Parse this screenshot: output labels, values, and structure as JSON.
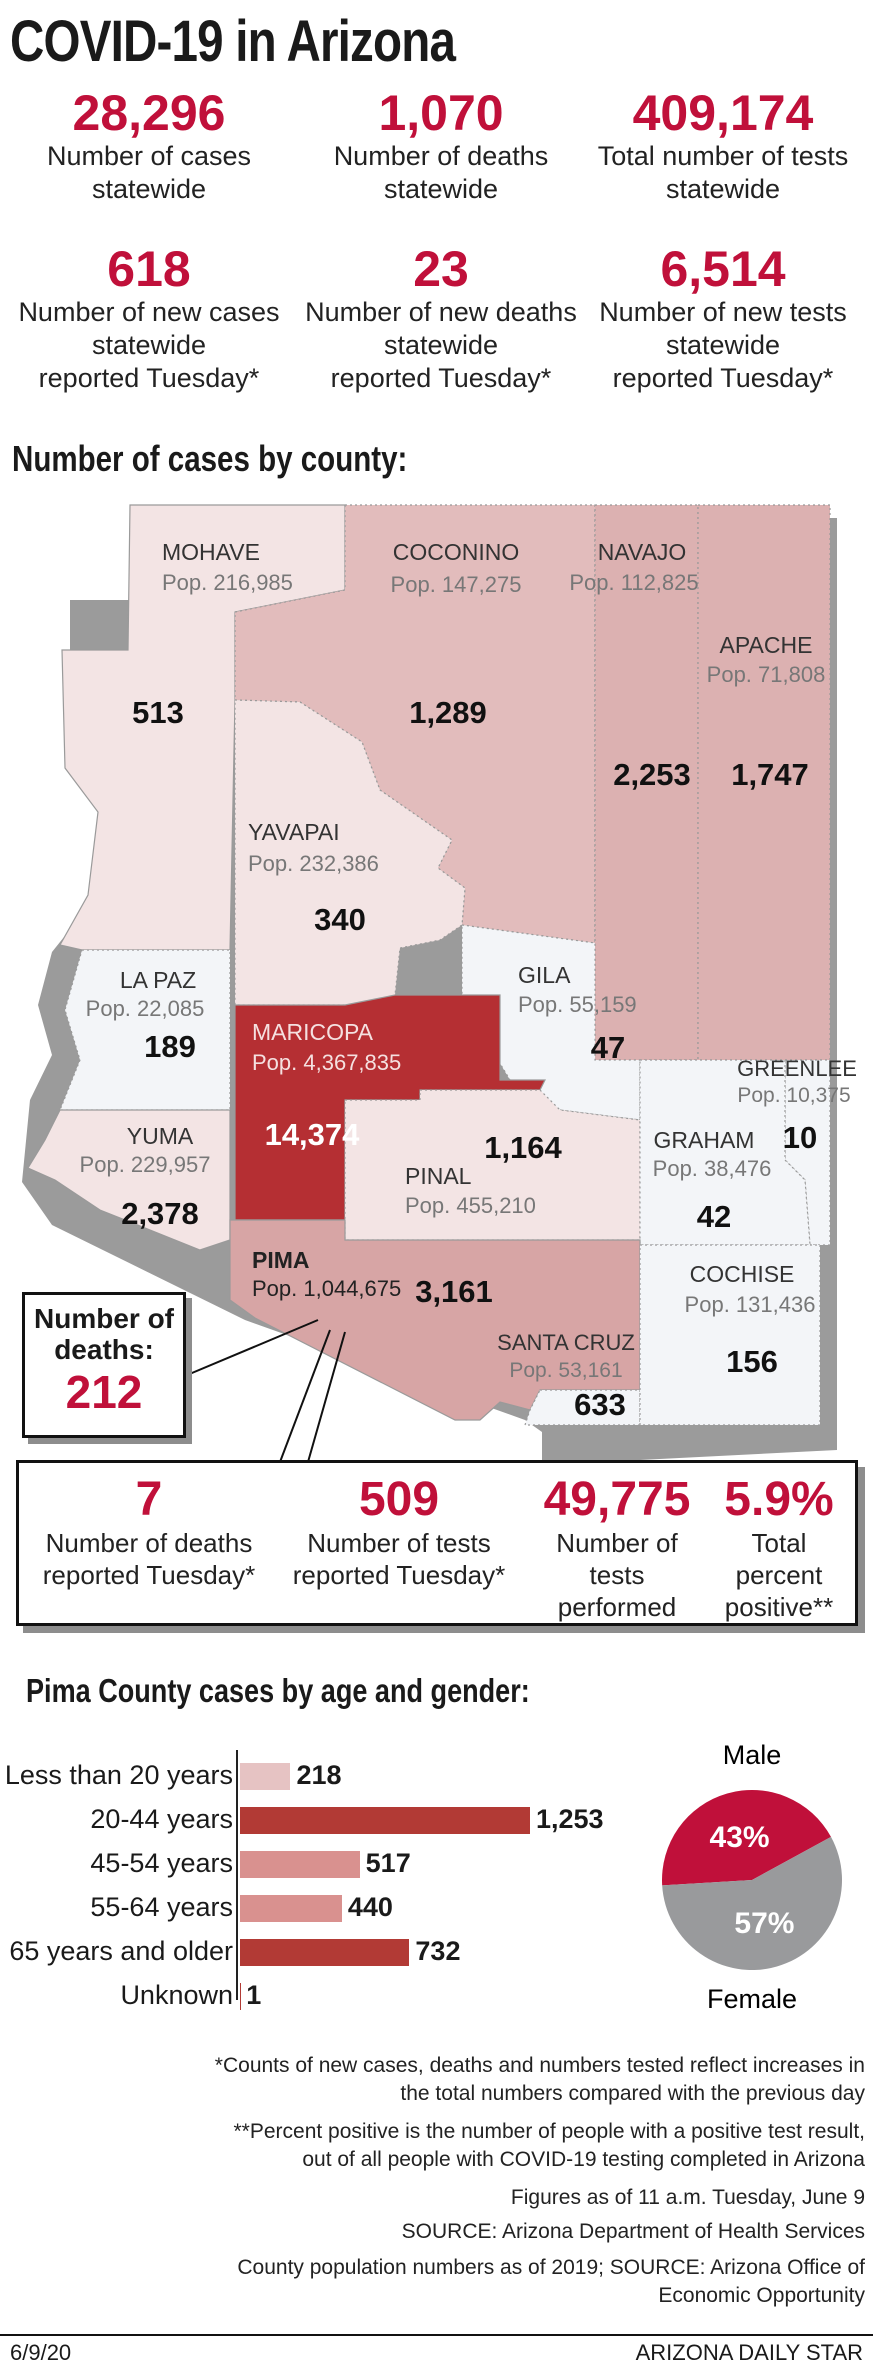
{
  "title": "COVID-19 in Arizona",
  "stats_top": [
    {
      "value": "28,296",
      "label": [
        "Number of cases",
        "statewide"
      ]
    },
    {
      "value": "1,070",
      "label": [
        "Number of deaths",
        "statewide"
      ]
    },
    {
      "value": "409,174",
      "label": [
        "Total number of tests",
        "statewide"
      ]
    },
    {
      "value": "618",
      "label": [
        "Number of new cases",
        "statewide",
        "reported Tuesday*"
      ]
    },
    {
      "value": "23",
      "label": [
        "Number of new deaths",
        "statewide",
        "reported Tuesday*"
      ]
    },
    {
      "value": "6,514",
      "label": [
        "Number of new tests",
        "statewide",
        "reported Tuesday*"
      ]
    }
  ],
  "map_heading": "Number of cases by county:",
  "counties": [
    {
      "name": "MOHAVE",
      "pop": "Pop. 216,985",
      "cases": "513"
    },
    {
      "name": "COCONINO",
      "pop": "Pop. 147,275",
      "cases": "1,289"
    },
    {
      "name": "NAVAJO",
      "pop": "Pop. 112,825",
      "cases": "2,253"
    },
    {
      "name": "APACHE",
      "pop": "Pop. 71,808",
      "cases": "1,747"
    },
    {
      "name": "YAVAPAI",
      "pop": "Pop. 232,386",
      "cases": "340"
    },
    {
      "name": "LA PAZ",
      "pop": "Pop. 22,085",
      "cases": "189"
    },
    {
      "name": "GILA",
      "pop": "Pop. 55,159",
      "cases": "47"
    },
    {
      "name": "MARICOPA",
      "pop": "Pop. 4,367,835",
      "cases": "14,374"
    },
    {
      "name": "GREENLEE",
      "pop": "Pop. 10,375",
      "cases": "10"
    },
    {
      "name": "YUMA",
      "pop": "Pop. 229,957",
      "cases": "2,378"
    },
    {
      "name": "PINAL",
      "pop": "Pop. 455,210",
      "cases": "1,164"
    },
    {
      "name": "GRAHAM",
      "pop": "Pop. 38,476",
      "cases": "42"
    },
    {
      "name": "PIMA",
      "pop": "Pop. 1,044,675",
      "cases": "3,161"
    },
    {
      "name": "COCHISE",
      "pop": "Pop. 131,436",
      "cases": "156"
    },
    {
      "name": "SANTA CRUZ",
      "pop": "Pop. 53,161",
      "cases": "633"
    }
  ],
  "pima_deaths": {
    "label": [
      "Number of",
      "deaths:"
    ],
    "value": "212"
  },
  "pima_stats": [
    {
      "value": "7",
      "label": [
        "Number of deaths",
        "reported Tuesday*"
      ]
    },
    {
      "value": "509",
      "label": [
        "Number of tests",
        "reported Tuesday*"
      ]
    },
    {
      "value": "49,775",
      "label": [
        "Number of tests",
        "performed"
      ]
    },
    {
      "value": "5.9%",
      "label": [
        "Total percent",
        "positive**"
      ]
    }
  ],
  "age_heading": "Pima County cases by age and gender:",
  "chart_data": [
    {
      "type": "bar",
      "title": "Pima County cases by age and gender:",
      "categories": [
        "Less than 20 years",
        "20-44 years",
        "45-54 years",
        "55-64 years",
        "65 years and older",
        "Unknown"
      ],
      "values": [
        218,
        1253,
        517,
        440,
        732,
        1
      ],
      "value_labels": [
        "218",
        "1,253",
        "517",
        "440",
        "732",
        "1"
      ],
      "colors": [
        "#e6c3c3",
        "#b23a35",
        "#d9918f",
        "#d9918f",
        "#b23a35",
        "#b23a35"
      ],
      "orientation": "horizontal",
      "grid": false
    },
    {
      "type": "pie",
      "categories": [
        "Male",
        "Female"
      ],
      "values": [
        43,
        57
      ],
      "value_labels": [
        "43%",
        "57%"
      ],
      "colors": [
        "#c0103a",
        "#999a9c"
      ]
    }
  ],
  "footnotes": [
    [
      "*Counts of new cases, deaths and numbers tested reflect increases in",
      "the total numbers compared with the previous day"
    ],
    [
      "**Percent positive is the number of people with a positive test result,",
      "out of all people with COVID-19 testing completed in Arizona"
    ],
    [
      "Figures as of 11 a.m. Tuesday, June 9"
    ],
    [
      "SOURCE: Arizona Department of Health Services"
    ],
    [
      "County population numbers as of 2019; SOURCE: Arizona Office of",
      "Economic Opportunity"
    ]
  ],
  "footer": {
    "date": "6/9/20",
    "source": "ARIZONA DAILY STAR"
  },
  "colors": {
    "accent": "#c0103a",
    "county_light": "#f3e4e4",
    "county_mid": "#e2bcbc",
    "county_dark": "#b52f33",
    "county_pale": "#f3f5f8"
  }
}
